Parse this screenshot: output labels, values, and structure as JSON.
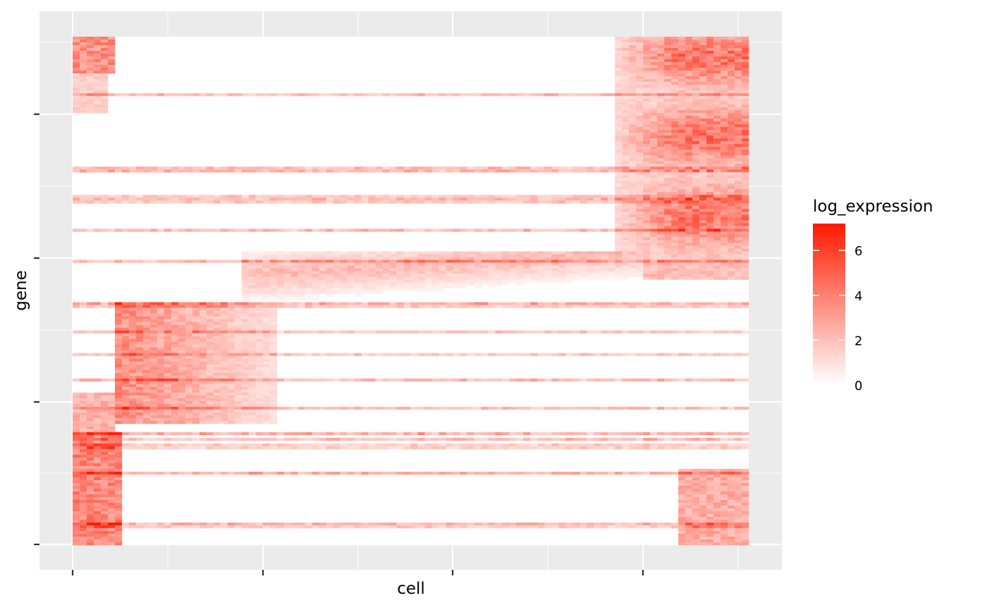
{
  "chart_data": {
    "type": "heatmap",
    "xlabel": "cell",
    "ylabel": "gene",
    "fill_variable": "log_expression",
    "color_scale": {
      "low": "#ffffff",
      "high": "#ff1a00",
      "range": [
        0,
        7.2
      ]
    },
    "legend": {
      "title": "log_expression",
      "ticks": [
        0,
        2,
        4,
        6
      ],
      "placement": "right"
    },
    "x_ticks_labeled": false,
    "y_ticks_labeled": false,
    "panel_background": "#ebebeb",
    "grid": true,
    "blocks_summary": [
      {
        "cells": "first ~6% (early cluster)",
        "genes": "bottom ~20%",
        "mean_log_expression": 4.0
      },
      {
        "cells": "~6% to ~35%",
        "genes": "middle-lower band (~50%–60%)",
        "mean_log_expression": 3.0
      },
      {
        "cells": "~30% to ~85%",
        "genes": "middle band (~57%–40%)",
        "mean_log_expression": 2.0
      },
      {
        "cells": "last ~18% (late cluster)",
        "genes": "top ~45%",
        "mean_log_expression": 4.5
      }
    ]
  }
}
